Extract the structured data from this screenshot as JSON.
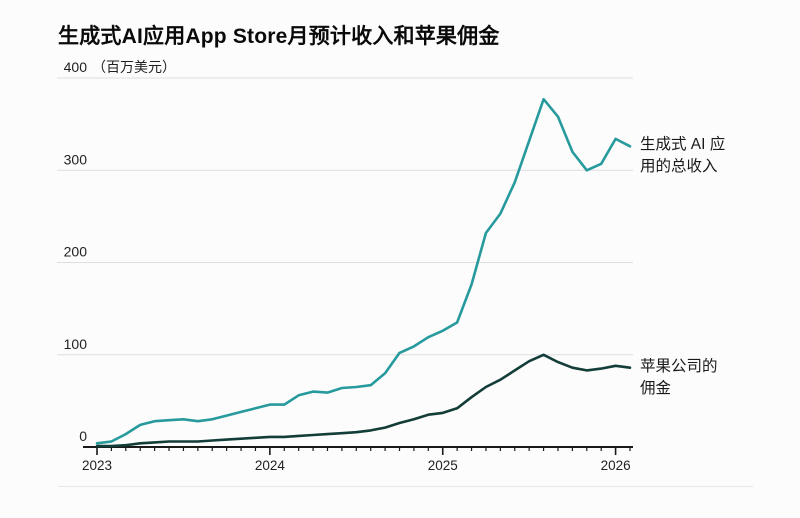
{
  "title": "生成式AI应用App Store月预计收入和苹果佣金",
  "chart_data": {
    "type": "line",
    "title": "生成式AI应用App Store月预计收入和苹果佣金",
    "unit_label": "（百万美元）",
    "y_ticks": [
      0,
      100,
      200,
      300,
      400
    ],
    "ylim": [
      0,
      400
    ],
    "x_year_labels": [
      "2023",
      "2024",
      "2025",
      "2026"
    ],
    "x_range_months": "2023-01 to 2026-02",
    "grid": "horizontal",
    "legend_position": "right-annotations",
    "colors": {
      "revenue": "#269a9c",
      "commission": "#133d38",
      "gridline": "#dedede",
      "axis": "#1a1a1a"
    },
    "series": [
      {
        "name": "生成式 AI 应用的总收入",
        "color": "#269a9c",
        "values": [
          4,
          6,
          14,
          24,
          28,
          29,
          30,
          28,
          30,
          34,
          38,
          42,
          46,
          46,
          56,
          60,
          59,
          64,
          65,
          67,
          80,
          102,
          109,
          119,
          126,
          135,
          176,
          232,
          253,
          287,
          332,
          377,
          358,
          320,
          300,
          307,
          334,
          326
        ]
      },
      {
        "name": "苹果公司的佣金",
        "color": "#133d38",
        "values": [
          1,
          1,
          2,
          4,
          5,
          6,
          6,
          6,
          7,
          8,
          9,
          10,
          11,
          11,
          12,
          13,
          14,
          15,
          16,
          18,
          21,
          26,
          30,
          35,
          37,
          42,
          54,
          65,
          73,
          83,
          93,
          100,
          92,
          86,
          83,
          85,
          88,
          86
        ]
      }
    ],
    "annotations": [
      {
        "line1": "生成式 AI 应",
        "line2": "用的总收入"
      },
      {
        "line1": "苹果公司的",
        "line2": "佣金"
      }
    ]
  }
}
